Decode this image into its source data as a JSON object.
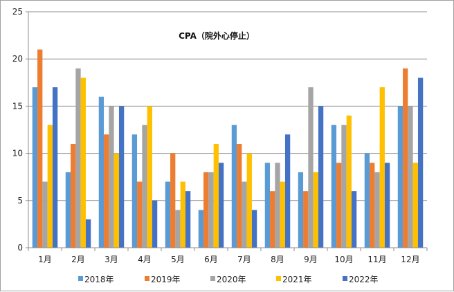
{
  "chart_data": {
    "type": "bar",
    "title": "CPA（院外心停止）",
    "categories": [
      "1月",
      "2月",
      "3月",
      "4月",
      "5月",
      "6月",
      "7月",
      "8月",
      "9月",
      "10月",
      "11月",
      "12月"
    ],
    "ylim": [
      0,
      25
    ],
    "yticks": [
      0,
      5,
      10,
      15,
      20,
      25
    ],
    "grid": true,
    "legend_position": "bottom",
    "series": [
      {
        "name": "2018年",
        "color": "#5B9BD5",
        "values": [
          17,
          8,
          16,
          12,
          7,
          4,
          13,
          9,
          8,
          13,
          10,
          15
        ]
      },
      {
        "name": "2019年",
        "color": "#ED7D31",
        "values": [
          21,
          11,
          12,
          7,
          10,
          8,
          11,
          6,
          6,
          9,
          9,
          19
        ]
      },
      {
        "name": "2020年",
        "color": "#A5A5A5",
        "values": [
          7,
          19,
          15,
          13,
          4,
          8,
          7,
          9,
          17,
          13,
          8,
          15
        ]
      },
      {
        "name": "2021年",
        "color": "#FFC000",
        "values": [
          13,
          18,
          10,
          15,
          7,
          11,
          10,
          7,
          8,
          14,
          17,
          9
        ]
      },
      {
        "name": "2022年",
        "color": "#4472C4",
        "values": [
          17,
          3,
          15,
          5,
          6,
          9,
          4,
          12,
          15,
          6,
          9,
          18
        ]
      }
    ]
  }
}
